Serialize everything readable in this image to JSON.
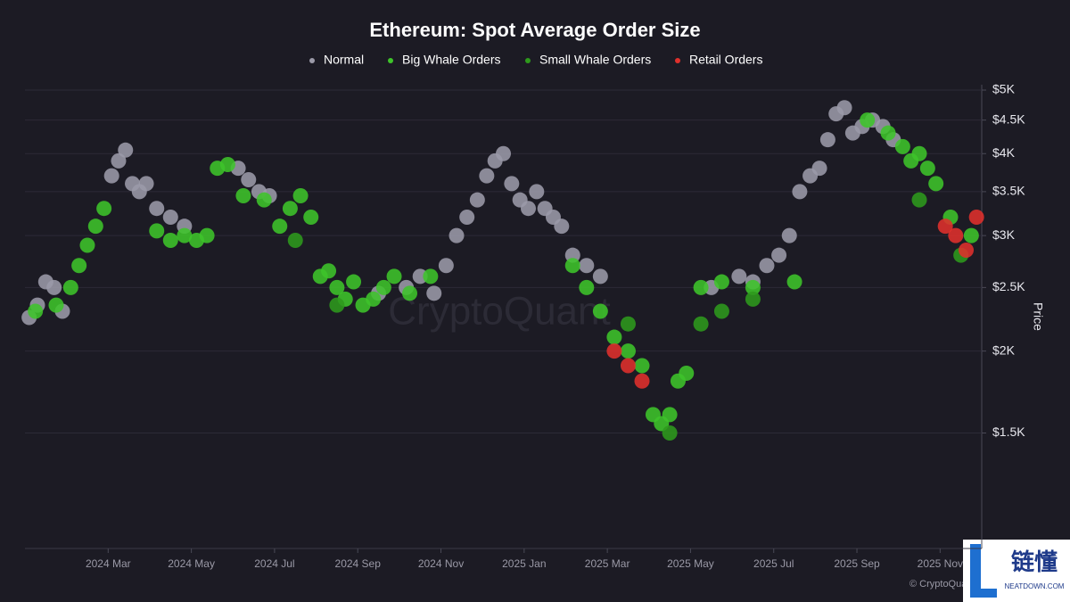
{
  "chart_data": {
    "type": "scatter",
    "title": "Ethereum: Spot Average Order Size",
    "y_label": "Price",
    "watermark": "CryptoQuant",
    "credit": "© CryptoQuant",
    "badge": {
      "title": "链懂",
      "subtitle": "NEATDOWN.COM"
    },
    "log_y": true,
    "grid": true,
    "xlim": [
      "2024-01",
      "2025-12"
    ],
    "xticks": [
      {
        "value": "2024-03",
        "label": "2024 Mar"
      },
      {
        "value": "2024-05",
        "label": "2024 May"
      },
      {
        "value": "2024-07",
        "label": "2024 Jul"
      },
      {
        "value": "2024-09",
        "label": "2024 Sep"
      },
      {
        "value": "2024-11",
        "label": "2024 Nov"
      },
      {
        "value": "2025-01",
        "label": "2025 Jan"
      },
      {
        "value": "2025-03",
        "label": "2025 Mar"
      },
      {
        "value": "2025-05",
        "label": "2025 May"
      },
      {
        "value": "2025-07",
        "label": "2025 Jul"
      },
      {
        "value": "2025-09",
        "label": "2025 Sep"
      },
      {
        "value": "2025-11",
        "label": "2025 Nov"
      }
    ],
    "ylim": [
      1000,
      5000
    ],
    "yticks": [
      {
        "value": 1500,
        "label": "$1.5K"
      },
      {
        "value": 2000,
        "label": "$2K"
      },
      {
        "value": 2500,
        "label": "$2.5K"
      },
      {
        "value": 3000,
        "label": "$3K"
      },
      {
        "value": 3500,
        "label": "$3.5K"
      },
      {
        "value": 4000,
        "label": "$4K"
      },
      {
        "value": 4500,
        "label": "$4.5K"
      },
      {
        "value": 5000,
        "label": "$5K"
      }
    ],
    "series": [
      {
        "name": "Normal",
        "color": "#9b9aa8",
        "x": [
          "2024-01",
          "2024-01",
          "2024-01",
          "2024-01",
          "2024-01",
          "2024-03",
          "2024-03",
          "2024-03",
          "2024-03",
          "2024-03",
          "2024-03",
          "2024-04",
          "2024-04",
          "2024-04",
          "2024-06",
          "2024-06",
          "2024-06",
          "2024-06",
          "2024-09",
          "2024-10",
          "2024-10",
          "2024-10",
          "2024-11",
          "2024-11",
          "2024-11",
          "2024-11",
          "2024-12",
          "2024-12",
          "2024-12",
          "2024-12",
          "2024-12",
          "2025-01",
          "2025-01",
          "2025-01",
          "2025-01",
          "2025-01",
          "2025-02",
          "2025-02",
          "2025-02",
          "2025-05",
          "2025-06",
          "2025-06",
          "2025-06",
          "2025-07",
          "2025-07",
          "2025-07",
          "2025-07",
          "2025-08",
          "2025-08",
          "2025-08",
          "2025-08",
          "2025-08",
          "2025-09",
          "2025-09",
          "2025-09",
          "2025-09"
        ],
        "values": [
          2250,
          2350,
          2550,
          2500,
          2300,
          3700,
          3900,
          4050,
          3600,
          3500,
          3600,
          3300,
          3200,
          3100,
          3800,
          3650,
          3500,
          3450,
          2450,
          2500,
          2600,
          2450,
          2700,
          3000,
          3200,
          3400,
          3700,
          3900,
          4000,
          3600,
          3400,
          3300,
          3500,
          3300,
          3200,
          3100,
          2800,
          2700,
          2600,
          2500,
          2600,
          2550,
          2700,
          2800,
          3000,
          3500,
          3700,
          3800,
          4200,
          4600,
          4700,
          4300,
          4400,
          4500,
          4400,
          4200
        ]
      },
      {
        "name": "Big Whale Orders",
        "color": "#3ec42a",
        "x": [
          "2024-01",
          "2024-01",
          "2024-02",
          "2024-02",
          "2024-02",
          "2024-02",
          "2024-02",
          "2024-04",
          "2024-04",
          "2024-04",
          "2024-05",
          "2024-05",
          "2024-05",
          "2024-05",
          "2024-06",
          "2024-06",
          "2024-07",
          "2024-07",
          "2024-07",
          "2024-07",
          "2024-08",
          "2024-08",
          "2024-08",
          "2024-08",
          "2024-08",
          "2024-09",
          "2024-09",
          "2024-09",
          "2024-09",
          "2024-10",
          "2024-10",
          "2025-02",
          "2025-02",
          "2025-02",
          "2025-03",
          "2025-03",
          "2025-03",
          "2025-04",
          "2025-04",
          "2025-04",
          "2025-04",
          "2025-04",
          "2025-05",
          "2025-05",
          "2025-06",
          "2025-07",
          "2025-09",
          "2025-09",
          "2025-10",
          "2025-10",
          "2025-10",
          "2025-10",
          "2025-10",
          "2025-11",
          "2025-11"
        ],
        "values": [
          2300,
          2350,
          2500,
          2700,
          2900,
          3100,
          3300,
          3050,
          2950,
          3000,
          2950,
          3000,
          3800,
          3850,
          3450,
          3400,
          3100,
          3300,
          3450,
          3200,
          2600,
          2650,
          2500,
          2400,
          2550,
          2350,
          2400,
          2500,
          2600,
          2450,
          2600,
          2700,
          2500,
          2300,
          2100,
          2000,
          1900,
          1600,
          1550,
          1600,
          1800,
          1850,
          2500,
          2550,
          2500,
          2550,
          4500,
          4300,
          4100,
          3900,
          4000,
          3800,
          3600,
          3200,
          3000
        ]
      },
      {
        "name": "Small Whale Orders",
        "color": "#2e9a1c",
        "x": [
          "2024-07",
          "2024-08",
          "2025-03",
          "2025-04",
          "2025-05",
          "2025-05",
          "2025-06",
          "2025-10",
          "2025-11"
        ],
        "values": [
          2950,
          2350,
          2200,
          1500,
          2200,
          2300,
          2400,
          3400,
          2800
        ]
      },
      {
        "name": "Retail Orders",
        "color": "#e0302c",
        "x": [
          "2025-03",
          "2025-03",
          "2025-03",
          "2025-11",
          "2025-11",
          "2025-11",
          "2025-11"
        ],
        "values": [
          2000,
          1900,
          1800,
          3100,
          3000,
          2850,
          3200
        ]
      }
    ]
  }
}
